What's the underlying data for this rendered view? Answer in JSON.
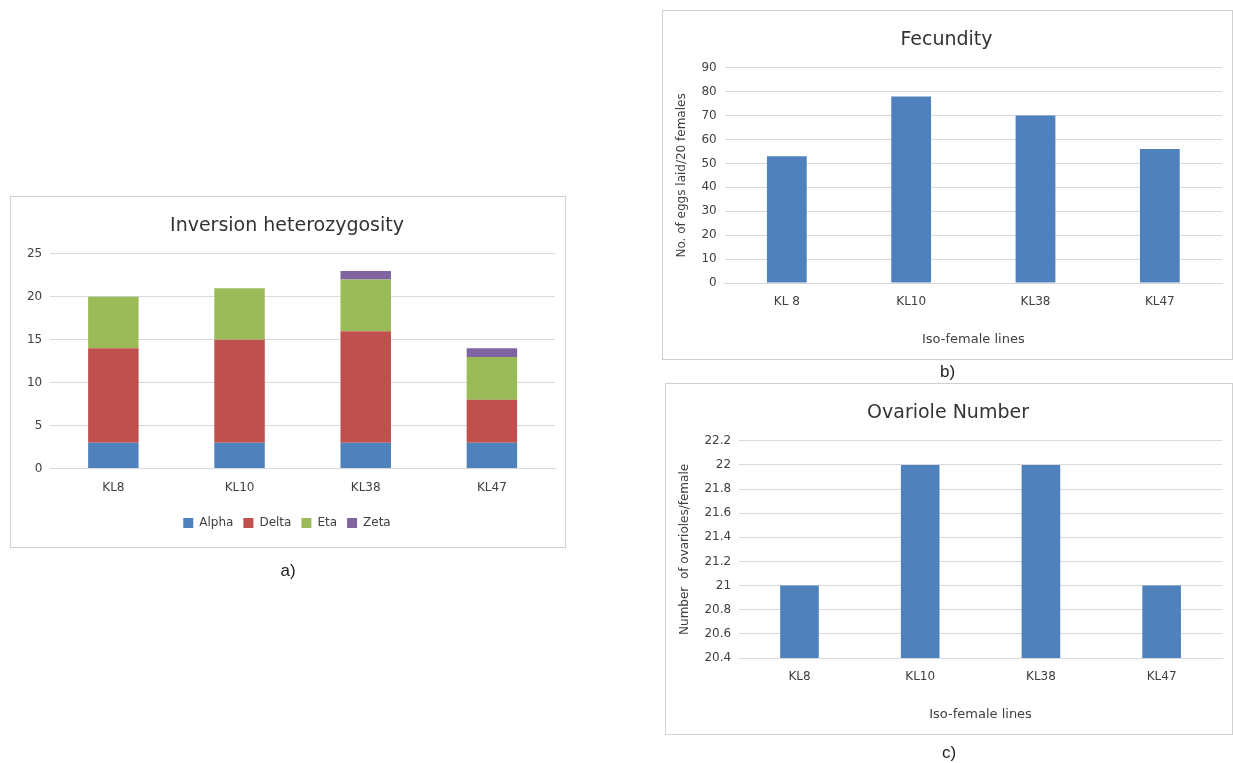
{
  "chart_data": [
    {
      "type": "bar",
      "title": "Inversion heterozygosity",
      "categories": [
        "KL8",
        "KL10",
        "KL38",
        "KL47"
      ],
      "stacked": true,
      "series": [
        {
          "name": "Alpha",
          "color": "#4f81bd",
          "values": [
            3,
            3,
            3,
            3
          ]
        },
        {
          "name": "Delta",
          "color": "#c0504d",
          "values": [
            11,
            12,
            13,
            5
          ]
        },
        {
          "name": "Eta",
          "color": "#9bbb59",
          "values": [
            6,
            6,
            6,
            5
          ]
        },
        {
          "name": "Zeta",
          "color": "#8064a2",
          "values": [
            null,
            null,
            1,
            1
          ]
        }
      ],
      "ylim": [
        0,
        25
      ],
      "yticks": [
        0,
        5,
        10,
        15,
        20,
        25
      ],
      "grid": "y",
      "legend": "bottom",
      "annotations": [
        "a)"
      ]
    },
    {
      "type": "bar",
      "title": "Fecundity",
      "categories": [
        "KL 8",
        "KL10",
        "KL38",
        "KL47"
      ],
      "xlabel": "Iso-female lines",
      "ylabel": "No. of eggs laid/20 females",
      "series": [
        {
          "color": "#4f81bd",
          "values": [
            53,
            78,
            70,
            56
          ]
        }
      ],
      "ylim": [
        0,
        90
      ],
      "yticks": [
        0,
        10,
        20,
        30,
        40,
        50,
        60,
        70,
        80,
        90
      ],
      "grid": "y",
      "annotations": [
        "b)"
      ]
    },
    {
      "type": "bar",
      "title": "Ovariole Number",
      "categories": [
        "KL8",
        "KL10",
        "KL38",
        "KL47"
      ],
      "xlabel": "Iso-female lines",
      "ylabel": "Number  of ovarioles/female",
      "series": [
        {
          "color": "#4f81bd",
          "values": [
            21,
            22,
            22,
            21
          ]
        }
      ],
      "ylim": [
        20.4,
        22.2
      ],
      "yticks": [
        20.4,
        20.6,
        20.8,
        21,
        21.2,
        21.4,
        21.6,
        21.8,
        22,
        22.2
      ],
      "grid": "y",
      "annotations": [
        "c)"
      ]
    }
  ]
}
